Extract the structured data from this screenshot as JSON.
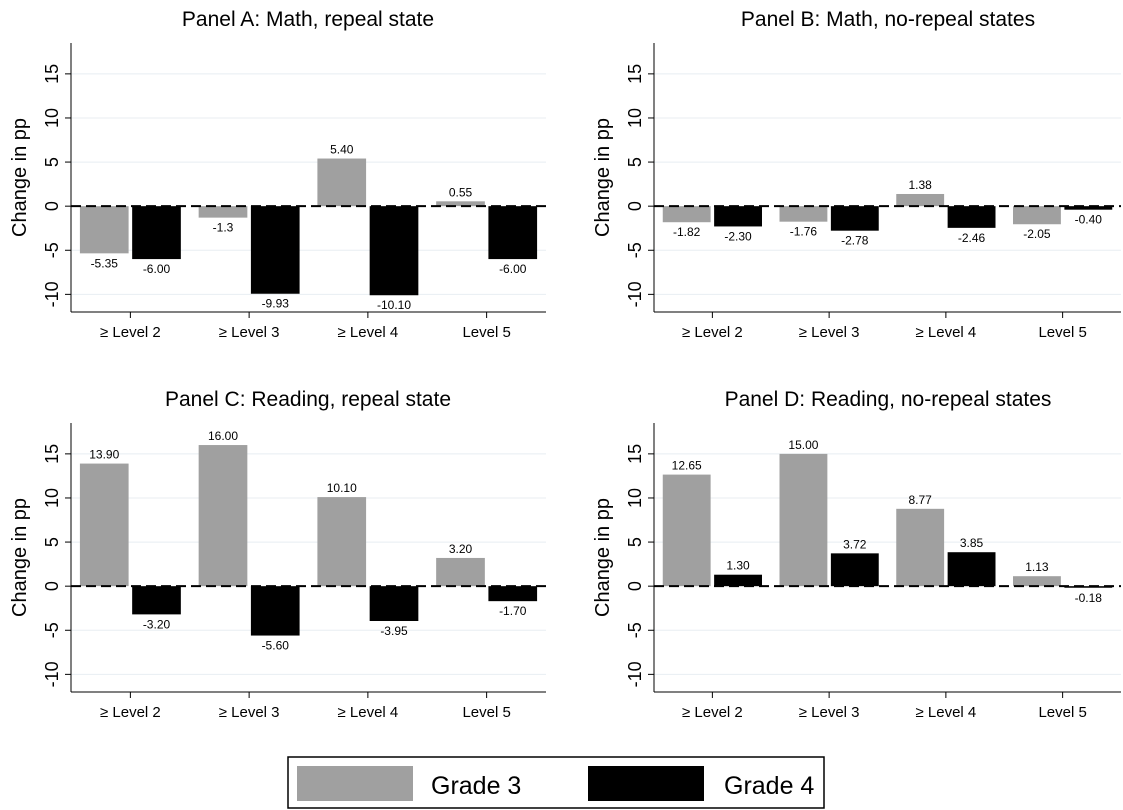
{
  "legend": {
    "items": [
      {
        "label": "Grade 3",
        "color": "#a0a0a0"
      },
      {
        "label": "Grade 4",
        "color": "#000000"
      }
    ],
    "placement": "bottom-center"
  },
  "colors": {
    "grade3": "#a0a0a0",
    "grade4": "#000000",
    "grid": "#e8eef2",
    "zero_line": "#000000"
  },
  "chart_data": [
    {
      "type": "bar",
      "title": "Panel A: Math, repeal state",
      "ylabel": "Change in pp",
      "ylim": [
        -12,
        18.5
      ],
      "yticks": [
        -10,
        -5,
        0,
        5,
        10,
        15
      ],
      "categories": [
        "≥ Level 2",
        "≥ Level 3",
        "≥ Level 4",
        "Level 5"
      ],
      "series": [
        {
          "name": "Grade 3",
          "values": [
            -5.35,
            -1.3,
            5.4,
            0.55
          ],
          "labels": [
            "-5.35",
            "-1.3",
            "5.40",
            "0.55"
          ]
        },
        {
          "name": "Grade 4",
          "values": [
            -6.0,
            -9.93,
            -10.1,
            -6.0
          ],
          "labels": [
            "-6.00",
            "-9.93",
            "-10.10",
            "-6.00"
          ]
        }
      ],
      "grid": true,
      "zero_line": "dashed"
    },
    {
      "type": "bar",
      "title": "Panel B: Math, no-repeal states",
      "ylabel": "Change in pp",
      "ylim": [
        -12,
        18.5
      ],
      "yticks": [
        -10,
        -5,
        0,
        5,
        10,
        15
      ],
      "categories": [
        "≥ Level 2",
        "≥ Level 3",
        "≥ Level 4",
        "Level 5"
      ],
      "series": [
        {
          "name": "Grade 3",
          "values": [
            -1.82,
            -1.76,
            1.38,
            -2.05
          ],
          "labels": [
            "-1.82",
            "-1.76",
            "1.38",
            "-2.05"
          ]
        },
        {
          "name": "Grade 4",
          "values": [
            -2.3,
            -2.78,
            -2.46,
            -0.4
          ],
          "labels": [
            "-2.30",
            "-2.78",
            "-2.46",
            "-0.40"
          ]
        }
      ],
      "grid": true,
      "zero_line": "dashed"
    },
    {
      "type": "bar",
      "title": "Panel C: Reading, repeal state",
      "ylabel": "Change in pp",
      "ylim": [
        -12,
        18.5
      ],
      "yticks": [
        -10,
        -5,
        0,
        5,
        10,
        15
      ],
      "categories": [
        "≥ Level 2",
        "≥ Level 3",
        "≥ Level 4",
        "Level 5"
      ],
      "series": [
        {
          "name": "Grade 3",
          "values": [
            13.9,
            16.0,
            10.1,
            3.2
          ],
          "labels": [
            "13.90",
            "16.00",
            "10.10",
            "3.20"
          ]
        },
        {
          "name": "Grade 4",
          "values": [
            -3.2,
            -5.6,
            -3.95,
            -1.7
          ],
          "labels": [
            "-3.20",
            "-5.60",
            "-3.95",
            "-1.70"
          ]
        }
      ],
      "grid": true,
      "zero_line": "dashed"
    },
    {
      "type": "bar",
      "title": "Panel D: Reading, no-repeal states",
      "ylabel": "Change in pp",
      "ylim": [
        -12,
        18.5
      ],
      "yticks": [
        -10,
        -5,
        0,
        5,
        10,
        15
      ],
      "categories": [
        "≥ Level 2",
        "≥ Level 3",
        "≥ Level 4",
        "Level 5"
      ],
      "series": [
        {
          "name": "Grade 3",
          "values": [
            12.65,
            15.0,
            8.77,
            1.13
          ],
          "labels": [
            "12.65",
            "15.00",
            "8.77",
            "1.13"
          ]
        },
        {
          "name": "Grade 4",
          "values": [
            1.3,
            3.72,
            3.85,
            -0.18
          ],
          "labels": [
            "1.30",
            "3.72",
            "3.85",
            "-0.18"
          ]
        }
      ],
      "grid": true,
      "zero_line": "dashed"
    }
  ]
}
